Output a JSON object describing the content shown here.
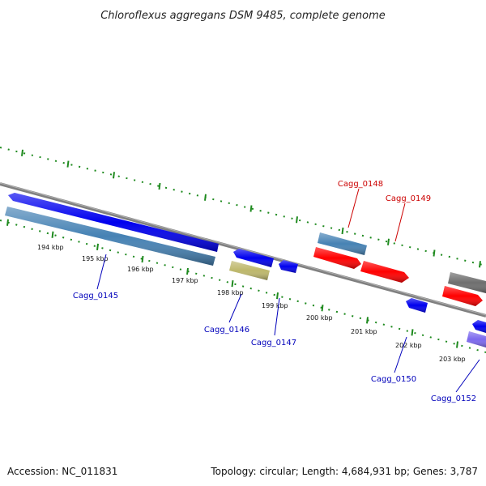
{
  "title": "Chloroflexus aggregans DSM 9485, complete genome",
  "footer": {
    "accession": "Accession: NC_011831",
    "summary": "Topology: circular; Length: 4,684,931 bp; Genes: 3,787"
  },
  "colors": {
    "background": "#ffffff",
    "backbone": "#808080",
    "tick": "#1e8a1e",
    "label_forward": "#cc0000",
    "label_reverse": "#0000bb"
  },
  "kbp_labels": [
    "194 kbp",
    "195 kbp",
    "196 kbp",
    "197 kbp",
    "198 kbp",
    "199 kbp",
    "200 kbp",
    "201 kbp",
    "202 kbp",
    "203 kbp"
  ],
  "gene_labels": [
    {
      "id": "Cagg_0145",
      "strand": "reverse"
    },
    {
      "id": "Cagg_0146",
      "strand": "reverse"
    },
    {
      "id": "Cagg_0147",
      "strand": "reverse"
    },
    {
      "id": "Cagg_0148",
      "strand": "forward"
    },
    {
      "id": "Cagg_0149",
      "strand": "forward"
    },
    {
      "id": "Cagg_0150",
      "strand": "reverse"
    },
    {
      "id": "Cagg_0152",
      "strand": "reverse"
    }
  ],
  "features": [
    {
      "name": "cds-reverse",
      "color": "#0000ee"
    },
    {
      "name": "gene-reverse",
      "color": "#4682b4"
    },
    {
      "name": "cds-reverse",
      "color": "#0000ee"
    },
    {
      "name": "rna-reverse",
      "color": "#bdb76b"
    },
    {
      "name": "cds-reverse",
      "color": "#0000ee"
    },
    {
      "name": "gene-forward",
      "color": "#4682b4"
    },
    {
      "name": "cds-forward",
      "color": "#ff0000"
    },
    {
      "name": "cds-forward",
      "color": "#ff0000"
    },
    {
      "name": "cds-reverse",
      "color": "#0000ee"
    },
    {
      "name": "other-forward",
      "color": "#6e6e6e"
    },
    {
      "name": "cds-forward",
      "color": "#ff0000"
    },
    {
      "name": "cds-reverse",
      "color": "#0000ee"
    },
    {
      "name": "misc-reverse",
      "color": "#7b68ee"
    }
  ]
}
